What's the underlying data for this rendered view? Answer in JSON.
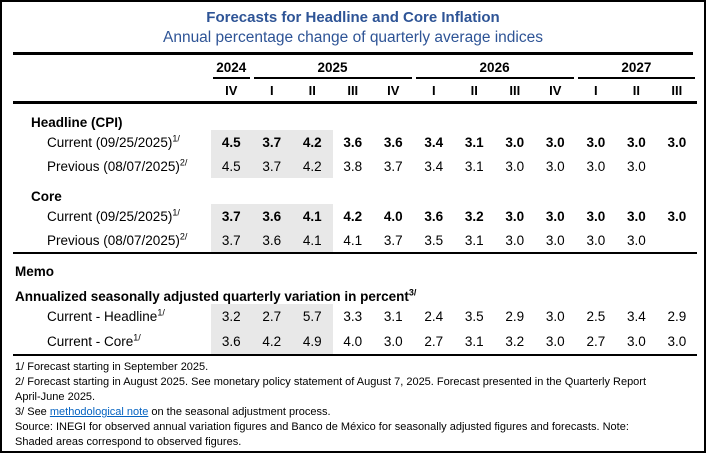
{
  "title": "Forecasts for Headline and Core Inflation",
  "subtitle": "Annual percentage change of quarterly average indices",
  "colors": {
    "heading_blue": "#2E5496",
    "shading_gray": "#E8E8E8",
    "link_blue": "#0563C1",
    "rule_black": "#000000"
  },
  "columns": {
    "years": [
      {
        "label": "2024",
        "span": 1
      },
      {
        "label": "2025",
        "span": 4
      },
      {
        "label": "2026",
        "span": 4
      },
      {
        "label": "2027",
        "span": 3
      }
    ],
    "quarters": [
      "IV",
      "I",
      "II",
      "III",
      "IV",
      "I",
      "II",
      "III",
      "IV",
      "I",
      "II",
      "III"
    ]
  },
  "shaded_columns": 3,
  "sections": [
    {
      "label": "Headline (CPI)",
      "rows": [
        {
          "label": "Current (09/25/2025)",
          "sup": "1/",
          "bold": true,
          "values": [
            "4.5",
            "3.7",
            "4.2",
            "3.6",
            "3.6",
            "3.4",
            "3.1",
            "3.0",
            "3.0",
            "3.0",
            "3.0",
            "3.0"
          ]
        },
        {
          "label": "Previous (08/07/2025)",
          "sup": "2/",
          "bold": false,
          "values": [
            "4.5",
            "3.7",
            "4.2",
            "3.8",
            "3.7",
            "3.4",
            "3.1",
            "3.0",
            "3.0",
            "3.0",
            "3.0",
            ""
          ]
        }
      ]
    },
    {
      "label": "Core",
      "rows": [
        {
          "label": "Current (09/25/2025)",
          "sup": "1/",
          "bold": true,
          "values": [
            "3.7",
            "3.6",
            "4.1",
            "4.2",
            "4.0",
            "3.6",
            "3.2",
            "3.0",
            "3.0",
            "3.0",
            "3.0",
            "3.0"
          ]
        },
        {
          "label": "Previous (08/07/2025)",
          "sup": "2/",
          "bold": false,
          "values": [
            "3.7",
            "3.6",
            "4.1",
            "4.1",
            "3.7",
            "3.5",
            "3.1",
            "3.0",
            "3.0",
            "3.0",
            "3.0",
            ""
          ]
        }
      ]
    }
  ],
  "memo": {
    "label": "Memo",
    "subheading": "Annualized seasonally adjusted quarterly variation in percent",
    "subheading_sup": "3/",
    "rows": [
      {
        "label": "Current - Headline",
        "sup": "1/",
        "bold": false,
        "values": [
          "3.2",
          "2.7",
          "5.7",
          "3.3",
          "3.1",
          "2.4",
          "3.5",
          "2.9",
          "3.0",
          "2.5",
          "3.4",
          "2.9"
        ]
      },
      {
        "label": "Current - Core",
        "sup": "1/",
        "bold": false,
        "values": [
          "3.6",
          "4.2",
          "4.9",
          "4.0",
          "3.0",
          "2.7",
          "3.1",
          "3.2",
          "3.0",
          "2.7",
          "3.0",
          "3.0"
        ]
      }
    ]
  },
  "footnotes": {
    "line1": "1/ Forecast starting in September 2025.",
    "line2a": "2/ Forecast starting in August 2025. See monetary policy statement of August 7, 2025. Forecast presented in the Quarterly Report",
    "line2b": "April-June 2025.",
    "line3_pre": "3/ See ",
    "line3_link": "methodological note",
    "line3_post": " on the seasonal adjustment process.",
    "source_a": "Source: INEGI for observed annual variation figures and Banco de México for seasonally adjusted figures and forecasts. Note:",
    "source_b": "Shaded areas correspond to observed figures."
  }
}
